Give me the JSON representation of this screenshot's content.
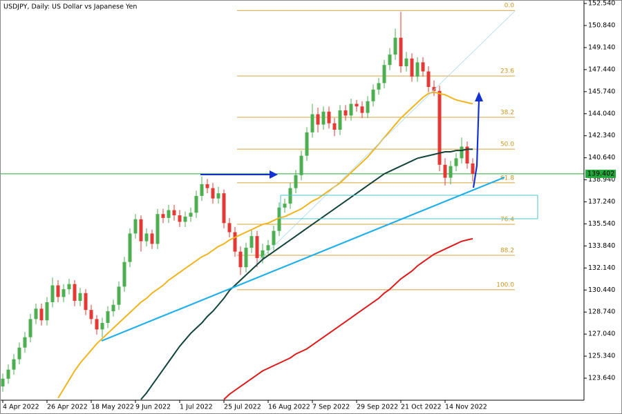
{
  "chart_data": {
    "type": "candlestick",
    "title": "USDJPY, Daily:  US Dollar vs Japanese Yen",
    "categories": [
      "4 Apr 2022",
      null,
      null,
      null,
      null,
      null,
      null,
      null,
      "26 Apr 2022",
      null,
      null,
      null,
      null,
      null,
      null,
      null,
      "18 May 2022",
      null,
      null,
      null,
      null,
      null,
      null,
      null,
      "9 Jun 2022",
      null,
      null,
      null,
      null,
      null,
      null,
      null,
      "1 Jul 2022",
      null,
      null,
      null,
      null,
      null,
      null,
      null,
      "25 Jul 2022",
      null,
      null,
      null,
      null,
      null,
      null,
      null,
      "16 Aug 2022",
      null,
      null,
      null,
      null,
      null,
      null,
      null,
      "7 Sep 2022",
      null,
      null,
      null,
      null,
      null,
      null,
      null,
      "29 Sep 2022",
      null,
      null,
      null,
      null,
      null,
      null,
      null,
      "21 Oct 2022",
      null,
      null,
      null,
      null,
      null,
      null,
      null,
      "14 Nov 2022",
      null,
      null,
      null,
      null,
      null
    ],
    "open": [
      123.0,
      123.6,
      124.3,
      125.1,
      126.0,
      126.8,
      128.2,
      129.0,
      128.1,
      129.5,
      130.8,
      129.9,
      130.5,
      130.9,
      129.6,
      130.2,
      128.9,
      128.2,
      127.4,
      127.9,
      128.8,
      129.3,
      130.7,
      132.6,
      134.8,
      135.9,
      134.2,
      134.8,
      134.0,
      136.3,
      136.0,
      136.6,
      136.2,
      135.7,
      136.1,
      136.4,
      137.7,
      138.6,
      138.3,
      137.5,
      137.9,
      135.6,
      134.9,
      133.4,
      132.2,
      133.7,
      134.6,
      132.9,
      133.5,
      133.9,
      135.0,
      136.8,
      137.1,
      138.3,
      139.3,
      140.8,
      142.6,
      144.0,
      143.2,
      144.2,
      143.3,
      142.8,
      144.3,
      143.9,
      144.8,
      144.6,
      144.1,
      145.0,
      145.9,
      146.4,
      147.8,
      148.6,
      149.9,
      147.7,
      148.3,
      146.9,
      148.0,
      147.3,
      146.1,
      145.8,
      140.1,
      139.1,
      140.0,
      140.6,
      141.5,
      140.2
    ],
    "high": [
      124.0,
      124.7,
      125.5,
      126.4,
      127.2,
      128.6,
      129.4,
      129.4,
      129.9,
      131.4,
      131.2,
      130.9,
      131.3,
      131.2,
      130.6,
      130.5,
      129.3,
      128.5,
      128.3,
      129.2,
      129.7,
      131.1,
      133.0,
      135.2,
      136.3,
      136.2,
      135.2,
      135.1,
      136.7,
      136.7,
      137.0,
      137.0,
      136.6,
      136.5,
      136.8,
      138.1,
      139.2,
      139.0,
      138.7,
      138.4,
      138.2,
      136.0,
      135.3,
      133.8,
      134.1,
      135.1,
      135.0,
      134.0,
      134.3,
      135.4,
      137.2,
      137.5,
      138.7,
      139.7,
      141.2,
      143.0,
      144.8,
      144.5,
      144.6,
      144.6,
      143.7,
      144.7,
      144.7,
      145.2,
      145.1,
      145.0,
      145.4,
      146.3,
      146.8,
      148.2,
      149.1,
      150.6,
      151.9,
      148.8,
      148.7,
      148.4,
      148.4,
      147.7,
      146.6,
      146.2,
      140.6,
      140.4,
      141.0,
      142.2,
      141.9,
      140.6
    ],
    "low": [
      122.6,
      123.2,
      123.9,
      124.7,
      125.6,
      126.4,
      127.8,
      127.7,
      127.7,
      129.1,
      129.5,
      129.5,
      130.1,
      129.2,
      129.2,
      128.5,
      127.8,
      127.0,
      126.8,
      127.5,
      128.4,
      128.9,
      130.3,
      132.2,
      134.4,
      133.4,
      133.8,
      133.6,
      133.6,
      135.6,
      135.6,
      135.8,
      135.3,
      135.3,
      135.7,
      136.0,
      137.3,
      137.9,
      137.1,
      137.1,
      135.2,
      134.5,
      133.0,
      131.6,
      131.8,
      133.3,
      132.2,
      132.5,
      133.1,
      133.5,
      134.6,
      136.4,
      136.7,
      137.9,
      138.9,
      140.4,
      142.2,
      142.6,
      142.8,
      142.9,
      142.3,
      142.4,
      143.5,
      143.5,
      144.2,
      143.7,
      143.7,
      144.6,
      145.5,
      146.0,
      147.4,
      148.2,
      147.2,
      147.3,
      146.5,
      146.5,
      146.9,
      145.7,
      145.4,
      139.6,
      138.5,
      138.6,
      139.6,
      140.2,
      139.8,
      138.8
    ],
    "close": [
      123.6,
      124.3,
      125.1,
      126.0,
      126.8,
      128.2,
      129.0,
      128.1,
      129.5,
      130.8,
      129.9,
      130.5,
      130.9,
      129.6,
      130.2,
      128.9,
      128.2,
      127.4,
      127.9,
      128.8,
      129.3,
      130.7,
      132.6,
      134.8,
      135.9,
      134.2,
      134.8,
      134.0,
      136.3,
      136.0,
      136.6,
      136.2,
      135.7,
      136.1,
      136.4,
      137.7,
      138.6,
      138.3,
      137.5,
      137.9,
      135.6,
      134.9,
      133.4,
      132.2,
      133.7,
      134.6,
      132.9,
      133.5,
      133.9,
      135.0,
      136.8,
      137.1,
      138.3,
      139.3,
      140.8,
      142.6,
      144.0,
      143.2,
      144.2,
      143.3,
      142.8,
      144.3,
      143.9,
      144.8,
      144.6,
      144.1,
      145.0,
      145.9,
      146.4,
      147.8,
      148.6,
      149.9,
      147.7,
      148.3,
      146.9,
      148.0,
      147.3,
      146.1,
      145.8,
      140.1,
      139.1,
      140.0,
      140.6,
      141.5,
      140.2,
      139.4
    ],
    "up_color": "#4caf50",
    "down_color": "#e53935",
    "overlays": [
      {
        "color": "#f0b41c",
        "values": [
          null,
          null,
          null,
          null,
          null,
          null,
          null,
          null,
          null,
          null,
          122.1,
          122.8,
          123.5,
          124.2,
          124.8,
          125.3,
          125.8,
          126.3,
          126.7,
          127.1,
          127.5,
          127.9,
          128.3,
          128.7,
          129.1,
          129.5,
          129.8,
          130.2,
          130.5,
          130.8,
          131.2,
          131.5,
          131.8,
          132.1,
          132.4,
          132.7,
          133.0,
          133.2,
          133.5,
          133.8,
          134.0,
          134.3,
          134.5,
          134.7,
          134.9,
          135.1,
          135.3,
          135.5,
          135.6,
          135.8,
          136.0,
          136.1,
          136.3,
          136.5,
          136.7,
          137.0,
          137.3,
          137.5,
          137.8,
          138.1,
          138.4,
          138.7,
          139.1,
          139.5,
          139.9,
          140.3,
          140.7,
          141.2,
          141.7,
          142.2,
          142.7,
          143.2,
          143.7,
          144.1,
          144.5,
          144.9,
          145.3,
          145.6,
          145.7,
          145.6,
          145.5,
          145.3,
          145.1,
          145.0,
          144.9,
          144.8
        ]
      },
      {
        "color": "#10433a",
        "values": [
          null,
          null,
          null,
          null,
          null,
          null,
          null,
          null,
          null,
          null,
          null,
          null,
          null,
          null,
          null,
          null,
          null,
          null,
          null,
          null,
          null,
          null,
          null,
          null,
          null,
          122.0,
          122.5,
          123.1,
          123.7,
          124.3,
          124.9,
          125.5,
          126.1,
          126.6,
          127.1,
          127.5,
          127.9,
          128.4,
          128.8,
          129.3,
          129.8,
          130.4,
          130.8,
          131.2,
          131.6,
          132.0,
          132.4,
          132.8,
          133.1,
          133.4,
          133.7,
          134.0,
          134.3,
          134.6,
          134.9,
          135.2,
          135.5,
          135.8,
          136.1,
          136.4,
          136.7,
          137.0,
          137.3,
          137.6,
          137.9,
          138.2,
          138.5,
          138.8,
          139.1,
          139.4,
          139.6,
          139.8,
          140.0,
          140.2,
          140.4,
          140.6,
          140.7,
          140.8,
          140.9,
          141.0,
          141.1,
          141.1,
          141.2,
          141.2,
          141.3,
          141.3
        ]
      },
      {
        "color": "#dd1a1a",
        "values": [
          null,
          null,
          null,
          null,
          null,
          null,
          null,
          null,
          null,
          null,
          null,
          null,
          null,
          null,
          null,
          null,
          null,
          null,
          null,
          null,
          null,
          null,
          null,
          null,
          null,
          null,
          null,
          null,
          null,
          null,
          null,
          null,
          null,
          null,
          null,
          null,
          null,
          null,
          null,
          null,
          122.0,
          122.4,
          122.7,
          123.0,
          123.3,
          123.6,
          123.9,
          124.2,
          124.4,
          124.6,
          124.8,
          125.0,
          125.2,
          125.5,
          125.7,
          125.9,
          126.2,
          126.5,
          126.8,
          127.1,
          127.4,
          127.7,
          128.0,
          128.3,
          128.6,
          128.9,
          129.2,
          129.5,
          129.8,
          130.2,
          130.5,
          130.9,
          131.3,
          131.6,
          131.9,
          132.3,
          132.6,
          132.9,
          133.2,
          133.4,
          133.6,
          133.8,
          134.0,
          134.2,
          134.3,
          134.4
        ]
      }
    ],
    "fibonacci": [
      {
        "label": "0.0",
        "price": 152.0
      },
      {
        "label": "23.6",
        "price": 146.95
      },
      {
        "label": "38.2",
        "price": 143.76
      },
      {
        "label": "50.0",
        "price": 141.31
      },
      {
        "label": "61.8",
        "price": 138.71
      },
      {
        "label": "76.4",
        "price": 135.51
      },
      {
        "label": "88.2",
        "price": 133.12
      },
      {
        "label": "100.0",
        "price": 130.46
      }
    ],
    "fib_color": "#d4a23a",
    "last_price": 139.402,
    "last_price_color": "#22a83a",
    "ylim": [
      121.94,
      152.81
    ],
    "yticks": [
      {
        "value": 152.54,
        "label": "152.540"
      },
      {
        "value": 150.84,
        "label": "150.840"
      },
      {
        "value": 149.14,
        "label": "149.140"
      },
      {
        "value": 147.44,
        "label": "147.440"
      },
      {
        "value": 145.74,
        "label": "145.740"
      },
      {
        "value": 144.04,
        "label": "144.040"
      },
      {
        "value": 142.34,
        "label": "142.340"
      },
      {
        "value": 140.64,
        "label": "140.640"
      },
      {
        "value": 138.94,
        "label": "138.940"
      },
      {
        "value": 137.24,
        "label": "137.240"
      },
      {
        "value": 135.54,
        "label": "135.540"
      },
      {
        "value": 133.84,
        "label": "133.840"
      },
      {
        "value": 132.14,
        "label": "132.140"
      },
      {
        "value": 130.44,
        "label": "130.440"
      },
      {
        "value": 128.74,
        "label": "128.740"
      },
      {
        "value": 127.04,
        "label": "127.040"
      },
      {
        "value": 125.34,
        "label": "125.340"
      },
      {
        "value": 123.64,
        "label": "123.640"
      }
    ],
    "grid": false
  }
}
